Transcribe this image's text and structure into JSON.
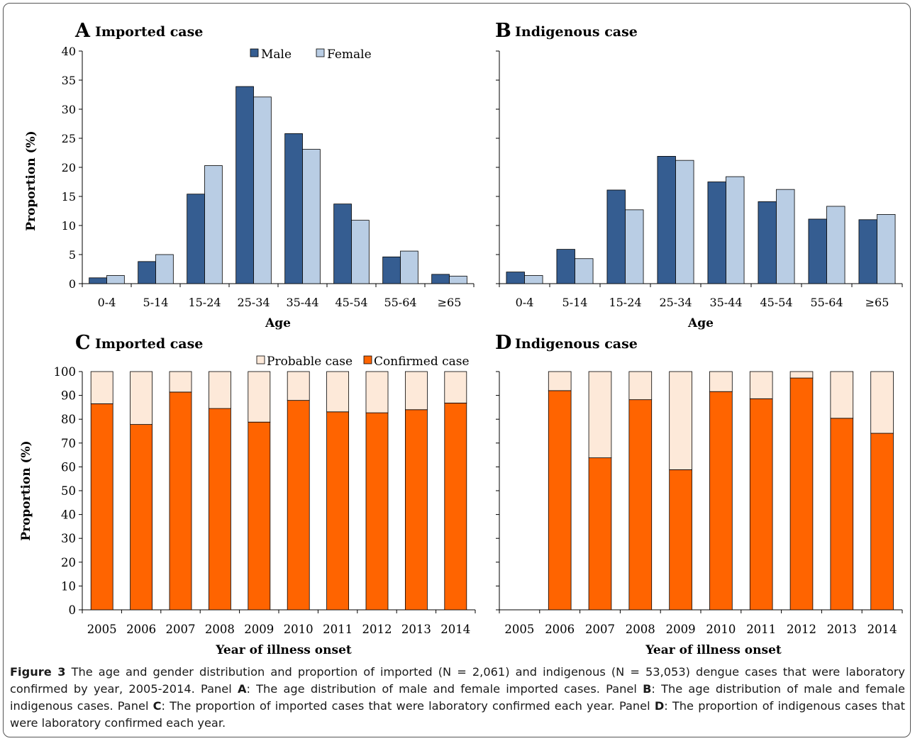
{
  "panels": [
    {
      "id": "A",
      "letter": "A",
      "title": "Imported case",
      "chart_data": {
        "type": "bar",
        "categories": [
          "0-4",
          "5-14",
          "15-24",
          "25-34",
          "35-44",
          "45-54",
          "55-64",
          "≥65"
        ],
        "series": [
          {
            "name": "Male",
            "values": [
              1.0,
              3.8,
              15.4,
              33.9,
              25.8,
              13.7,
              4.6,
              1.6
            ]
          },
          {
            "name": "Female",
            "values": [
              1.4,
              5.0,
              20.3,
              32.1,
              23.1,
              10.9,
              5.6,
              1.3
            ]
          }
        ],
        "ylabel": "Proportion (%)",
        "xlabel": "Age",
        "ylim": [
          0,
          40
        ],
        "yticks": [
          0,
          5,
          10,
          15,
          20,
          25,
          30,
          35,
          40
        ],
        "legend": "top-center",
        "grid": false
      }
    },
    {
      "id": "B",
      "letter": "B",
      "title": "Indigenous case",
      "chart_data": {
        "type": "bar",
        "categories": [
          "0-4",
          "5-14",
          "15-24",
          "25-34",
          "35-44",
          "45-54",
          "55-64",
          "≥65"
        ],
        "series": [
          {
            "name": "Male",
            "values": [
              2.0,
              5.9,
              16.1,
              21.9,
              17.5,
              14.1,
              11.1,
              11.0
            ]
          },
          {
            "name": "Female",
            "values": [
              1.4,
              4.3,
              12.7,
              21.2,
              18.4,
              16.2,
              13.3,
              11.9
            ]
          }
        ],
        "ylabel": "",
        "xlabel": "Age",
        "ylim": [
          0,
          40
        ],
        "grid": false
      }
    },
    {
      "id": "C",
      "letter": "C",
      "title": "Imported case",
      "chart_data": {
        "type": "bar",
        "stacked": true,
        "categories": [
          "2005",
          "2006",
          "2007",
          "2008",
          "2009",
          "2010",
          "2011",
          "2012",
          "2013",
          "2014"
        ],
        "series": [
          {
            "name": "Confirmed case",
            "values": [
              86.5,
              77.8,
              91.4,
              84.5,
              78.8,
              87.9,
              83.1,
              82.7,
              84.0,
              86.8
            ]
          },
          {
            "name": "Probable case",
            "values": [
              13.5,
              22.2,
              8.6,
              15.5,
              21.2,
              12.1,
              16.9,
              17.3,
              16.0,
              13.2
            ]
          }
        ],
        "ylabel": "Proportion (%)",
        "xlabel": "Year of illness onset",
        "ylim": [
          0,
          100
        ],
        "yticks": [
          0,
          10,
          20,
          30,
          40,
          50,
          60,
          70,
          80,
          90,
          100
        ],
        "legend": "top-right",
        "grid": false
      }
    },
    {
      "id": "D",
      "letter": "D",
      "title": "Indigenous case",
      "chart_data": {
        "type": "bar",
        "stacked": true,
        "categories": [
          "2005",
          "2006",
          "2007",
          "2008",
          "2009",
          "2010",
          "2011",
          "2012",
          "2013",
          "2014"
        ],
        "series": [
          {
            "name": "Confirmed case",
            "values": [
              null,
              92.0,
              63.8,
              88.2,
              58.8,
              91.6,
              88.6,
              97.3,
              80.4,
              74.1
            ]
          },
          {
            "name": "Probable case",
            "values": [
              null,
              8.0,
              36.2,
              11.8,
              41.2,
              8.4,
              11.4,
              2.7,
              19.6,
              25.9
            ]
          }
        ],
        "ylabel": "",
        "xlabel": "Year of illness onset",
        "ylim": [
          0,
          100
        ],
        "grid": false
      }
    }
  ],
  "colors": {
    "male": "#355d91",
    "female": "#b9cde4",
    "confirmed": "#ff6400",
    "probable": "#fde9d9",
    "axis": "#000000"
  },
  "caption": {
    "label": "Figure 3",
    "text": [
      " The age and gender distribution and proportion of imported (N = 2,061) and indigenous (N = 53,053) dengue cases that were laboratory confirmed by year, 2005-2014. Panel ",
      "A",
      ": The age distribution of male and female imported cases. Panel ",
      "B",
      ": The age distribution of male and female indigenous cases. Panel ",
      "C",
      ": The proportion of imported cases that were laboratory confirmed each year. Panel ",
      "D",
      ": The proportion of indigenous cases that were laboratory confirmed each year."
    ]
  }
}
